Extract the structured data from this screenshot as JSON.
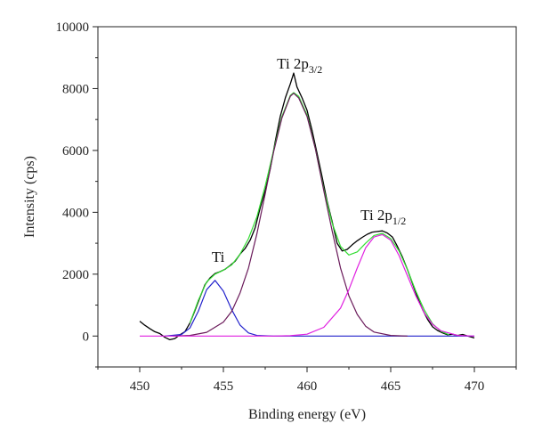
{
  "chart_data": {
    "type": "line",
    "title": "",
    "xlabel": "Binding energy (eV)",
    "ylabel": "Intensity (cps)",
    "xlim": [
      447.5,
      472.5
    ],
    "ylim": [
      -1000,
      10000
    ],
    "xticks": [
      450,
      455,
      460,
      465,
      470
    ],
    "yticks": [
      0,
      2000,
      4000,
      6000,
      8000,
      10000
    ],
    "grid": false,
    "legend": "none",
    "annotations": [
      {
        "id": "ti",
        "text": "Ti",
        "sub": "",
        "x": 454.3,
        "y": 2400
      },
      {
        "id": "p32",
        "text": "Ti 2p",
        "sub": "3/2",
        "x": 458.2,
        "y": 8650
      },
      {
        "id": "p12",
        "text": "Ti 2p",
        "sub": "1/2",
        "x": 463.2,
        "y": 3750
      }
    ],
    "series": [
      {
        "id": "measured",
        "color": "#000000",
        "points": [
          [
            450.0,
            480
          ],
          [
            450.3,
            350
          ],
          [
            450.6,
            240
          ],
          [
            450.9,
            140
          ],
          [
            451.2,
            80
          ],
          [
            451.5,
            -40
          ],
          [
            451.8,
            -120
          ],
          [
            452.1,
            -80
          ],
          [
            452.4,
            40
          ],
          [
            452.7,
            140
          ],
          [
            453.0,
            420
          ],
          [
            453.3,
            820
          ],
          [
            453.6,
            1250
          ],
          [
            453.9,
            1660
          ],
          [
            454.2,
            1880
          ],
          [
            454.5,
            2020
          ],
          [
            454.8,
            2080
          ],
          [
            455.1,
            2160
          ],
          [
            455.4,
            2280
          ],
          [
            455.7,
            2420
          ],
          [
            456.0,
            2650
          ],
          [
            456.3,
            2830
          ],
          [
            456.6,
            3100
          ],
          [
            456.9,
            3500
          ],
          [
            457.2,
            4150
          ],
          [
            457.5,
            4700
          ],
          [
            457.8,
            5400
          ],
          [
            458.1,
            6300
          ],
          [
            458.4,
            7100
          ],
          [
            458.7,
            7700
          ],
          [
            459.0,
            8150
          ],
          [
            459.2,
            8500
          ],
          [
            459.4,
            8050
          ],
          [
            459.7,
            7700
          ],
          [
            460.0,
            7300
          ],
          [
            460.3,
            6650
          ],
          [
            460.6,
            5900
          ],
          [
            460.9,
            5150
          ],
          [
            461.2,
            4350
          ],
          [
            461.5,
            3700
          ],
          [
            461.8,
            3000
          ],
          [
            462.1,
            2750
          ],
          [
            462.4,
            2800
          ],
          [
            462.7,
            2950
          ],
          [
            463.0,
            3080
          ],
          [
            463.3,
            3190
          ],
          [
            463.6,
            3290
          ],
          [
            463.9,
            3360
          ],
          [
            464.2,
            3380
          ],
          [
            464.5,
            3400
          ],
          [
            464.8,
            3330
          ],
          [
            465.1,
            3200
          ],
          [
            465.4,
            2900
          ],
          [
            465.7,
            2550
          ],
          [
            466.0,
            2150
          ],
          [
            466.3,
            1700
          ],
          [
            466.6,
            1250
          ],
          [
            466.9,
            860
          ],
          [
            467.2,
            540
          ],
          [
            467.5,
            300
          ],
          [
            467.8,
            180
          ],
          [
            468.1,
            100
          ],
          [
            468.4,
            40
          ],
          [
            468.7,
            60
          ],
          [
            469.0,
            20
          ],
          [
            469.3,
            50
          ],
          [
            469.6,
            0
          ],
          [
            470.0,
            -60
          ]
        ]
      },
      {
        "id": "envelope",
        "color": "#33dd33",
        "points": [
          [
            453.0,
            420
          ],
          [
            453.5,
            1150
          ],
          [
            454.0,
            1750
          ],
          [
            454.5,
            2000
          ],
          [
            455.0,
            2130
          ],
          [
            455.5,
            2300
          ],
          [
            456.0,
            2650
          ],
          [
            456.5,
            3150
          ],
          [
            457.0,
            3850
          ],
          [
            457.5,
            4850
          ],
          [
            458.0,
            6000
          ],
          [
            458.5,
            7100
          ],
          [
            459.0,
            7780
          ],
          [
            459.2,
            7870
          ],
          [
            459.5,
            7750
          ],
          [
            460.0,
            7150
          ],
          [
            460.5,
            6050
          ],
          [
            461.0,
            4750
          ],
          [
            461.5,
            3650
          ],
          [
            462.0,
            2900
          ],
          [
            462.5,
            2620
          ],
          [
            463.0,
            2720
          ],
          [
            463.5,
            3000
          ],
          [
            464.0,
            3250
          ],
          [
            464.5,
            3320
          ],
          [
            465.0,
            3150
          ],
          [
            465.5,
            2750
          ],
          [
            466.0,
            2150
          ],
          [
            466.5,
            1450
          ],
          [
            467.0,
            850
          ],
          [
            467.5,
            400
          ],
          [
            468.0,
            150
          ],
          [
            468.5,
            40
          ]
        ]
      },
      {
        "id": "ti-metal",
        "color": "#2222cc",
        "points": [
          [
            451.5,
            0
          ],
          [
            452.5,
            50
          ],
          [
            453.0,
            260
          ],
          [
            453.5,
            800
          ],
          [
            454.0,
            1500
          ],
          [
            454.5,
            1800
          ],
          [
            455.0,
            1450
          ],
          [
            455.5,
            850
          ],
          [
            456.0,
            350
          ],
          [
            456.5,
            100
          ],
          [
            457.0,
            20
          ],
          [
            458.0,
            0
          ],
          [
            470.0,
            0
          ]
        ]
      },
      {
        "id": "ti-2p32",
        "color": "#6a1a5a",
        "points": [
          [
            452.0,
            0
          ],
          [
            453.0,
            20
          ],
          [
            454.0,
            120
          ],
          [
            455.0,
            450
          ],
          [
            455.5,
            800
          ],
          [
            456.0,
            1400
          ],
          [
            456.5,
            2200
          ],
          [
            457.0,
            3300
          ],
          [
            457.5,
            4600
          ],
          [
            458.0,
            5950
          ],
          [
            458.5,
            7050
          ],
          [
            459.0,
            7750
          ],
          [
            459.2,
            7850
          ],
          [
            459.5,
            7700
          ],
          [
            460.0,
            7100
          ],
          [
            460.5,
            6050
          ],
          [
            461.0,
            4700
          ],
          [
            461.5,
            3400
          ],
          [
            462.0,
            2200
          ],
          [
            462.5,
            1300
          ],
          [
            463.0,
            700
          ],
          [
            463.5,
            320
          ],
          [
            464.0,
            130
          ],
          [
            465.0,
            20
          ],
          [
            466.0,
            0
          ]
        ]
      },
      {
        "id": "ti-2p12",
        "color": "#e020e0",
        "points": [
          [
            450.0,
            0
          ],
          [
            458.0,
            0
          ],
          [
            459.0,
            10
          ],
          [
            460.0,
            60
          ],
          [
            461.0,
            280
          ],
          [
            462.0,
            900
          ],
          [
            462.5,
            1500
          ],
          [
            463.0,
            2200
          ],
          [
            463.5,
            2850
          ],
          [
            464.0,
            3200
          ],
          [
            464.5,
            3280
          ],
          [
            465.0,
            3100
          ],
          [
            465.5,
            2600
          ],
          [
            466.0,
            1950
          ],
          [
            466.5,
            1300
          ],
          [
            467.0,
            750
          ],
          [
            467.5,
            380
          ],
          [
            468.0,
            170
          ],
          [
            469.0,
            20
          ],
          [
            470.0,
            0
          ]
        ]
      }
    ]
  }
}
